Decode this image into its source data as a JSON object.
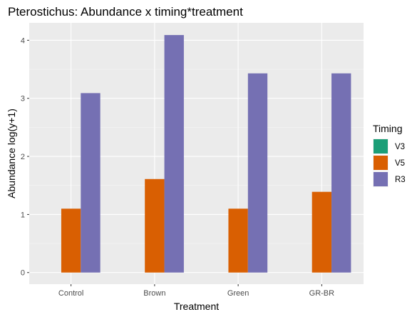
{
  "chart_data": {
    "type": "bar",
    "title": "Pterostichus: Abundance x timing*treatment",
    "xlabel": "Treatment",
    "ylabel": "Abundance log(y+1)",
    "categories": [
      "Control",
      "Brown",
      "Green",
      "GR-BR"
    ],
    "ylim": [
      -0.2,
      4.3
    ],
    "yticks": [
      0,
      1,
      2,
      3,
      4
    ],
    "grid": true,
    "legend": {
      "title": "Timing",
      "position": "right"
    },
    "series": [
      {
        "name": "V3",
        "color": "#1b9e77",
        "values": [
          0,
          0,
          0,
          0
        ]
      },
      {
        "name": "V5",
        "color": "#d95f02",
        "values": [
          1.1,
          1.61,
          1.1,
          1.39
        ]
      },
      {
        "name": "R3",
        "color": "#7570b3",
        "values": [
          3.09,
          4.09,
          3.43,
          3.43
        ]
      }
    ]
  }
}
